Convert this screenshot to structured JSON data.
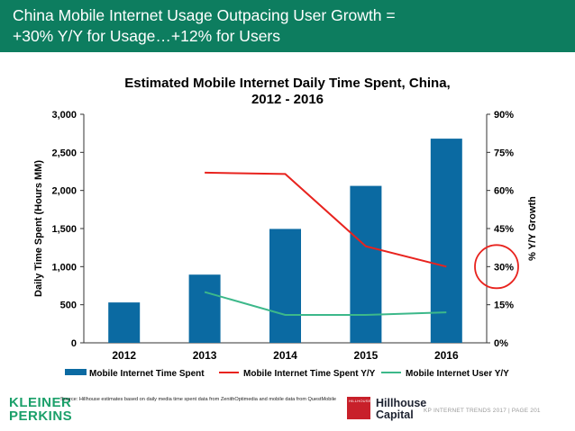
{
  "header": {
    "line1": "China Mobile Internet Usage Outpacing User Growth =",
    "line2": "+30% Y/Y for Usage…+12% for Users",
    "background": "#0d7d5f"
  },
  "chart_data": {
    "type": "bar",
    "title_line1": "Estimated Mobile Internet Daily Time Spent, China,",
    "title_line2": "2012 - 2016",
    "categories": [
      "2012",
      "2013",
      "2014",
      "2015",
      "2016"
    ],
    "ylabel": "Daily Time Spent (Hours MM)",
    "y2label": "% Y/Y Growth",
    "ylim": [
      0,
      3000
    ],
    "y2lim": [
      0,
      0.9
    ],
    "yticks": [
      "0",
      "500",
      "1,000",
      "1,500",
      "2,000",
      "2,500",
      "3,000"
    ],
    "y2ticks": [
      "0%",
      "15%",
      "30%",
      "45%",
      "60%",
      "75%",
      "90%"
    ],
    "grid": false,
    "legend_position": "bottom",
    "highlight_circle_at_y2": 0.3,
    "series": [
      {
        "name": "Mobile Internet Time Spent",
        "kind": "bar",
        "axis": "left",
        "color": "#0b6aa2",
        "values": [
          530,
          895,
          1495,
          2060,
          2680
        ]
      },
      {
        "name": "Mobile Internet Time Spent Y/Y",
        "kind": "line",
        "axis": "right",
        "color": "#e8231e",
        "values": [
          null,
          0.67,
          0.665,
          0.38,
          0.3
        ]
      },
      {
        "name": "Mobile Internet User Y/Y",
        "kind": "line",
        "axis": "right",
        "color": "#3cb88a",
        "values": [
          null,
          0.2,
          0.11,
          0.11,
          0.12
        ]
      }
    ]
  },
  "footer": {
    "logo_line1": "KLEINER",
    "logo_line2": "PERKINS",
    "source": "Source: Hillhouse estimates based on daily media time spent data from ZenithOptimedia and mobile data from QuestMobile",
    "partner_badge": "HILLHOUSE",
    "partner_line1": "Hillhouse",
    "partner_line2": "Capital",
    "page_ref": "KP INTERNET TRENDS 2017  |  PAGE 201"
  }
}
